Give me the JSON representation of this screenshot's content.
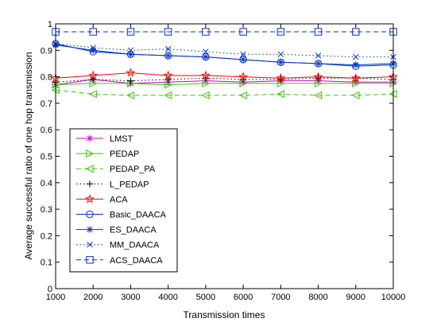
{
  "chart_data": {
    "type": "line",
    "title": "",
    "xlabel": "Transmission times",
    "ylabel": "Average successful ratio of one hop transmission",
    "x": [
      1000,
      2000,
      3000,
      4000,
      5000,
      6000,
      7000,
      8000,
      9000,
      10000
    ],
    "xlim": [
      1000,
      10000
    ],
    "ylim": [
      0,
      1
    ],
    "xticks": [
      "1000",
      "2000",
      "3000",
      "4000",
      "5000",
      "6000",
      "7000",
      "8000",
      "9000",
      "10000"
    ],
    "yticks": [
      "0",
      "0.1",
      "0.2",
      "0.3",
      "0.4",
      "0.5",
      "0.6",
      "0.7",
      "0.8",
      "0.9",
      "1"
    ],
    "grid": false,
    "legend_position": "bottom-left",
    "series": [
      {
        "name": "LMST",
        "color": "#cc00cc",
        "dash": "solid",
        "marker": "asterisk",
        "values": [
          0.77,
          0.79,
          0.775,
          0.78,
          0.785,
          0.78,
          0.785,
          0.785,
          0.78,
          0.78
        ]
      },
      {
        "name": "PEDAP",
        "color": "#33cc00",
        "dash": "solid",
        "marker": "triangle-right",
        "values": [
          0.77,
          0.775,
          0.775,
          0.77,
          0.775,
          0.775,
          0.775,
          0.775,
          0.775,
          0.775
        ]
      },
      {
        "name": "PEDAP_PA",
        "color": "#33cc00",
        "dash": "dashed",
        "marker": "triangle-left",
        "values": [
          0.75,
          0.735,
          0.73,
          0.73,
          0.73,
          0.73,
          0.735,
          0.73,
          0.73,
          0.735
        ]
      },
      {
        "name": "L_PEDAP",
        "color": "#000000",
        "dash": "dotted",
        "marker": "plus",
        "values": [
          0.78,
          0.79,
          0.785,
          0.79,
          0.795,
          0.79,
          0.79,
          0.795,
          0.795,
          0.79
        ]
      },
      {
        "name": "ACA",
        "color": "#ff0000",
        "dash": "solid",
        "marker": "star",
        "values": [
          0.795,
          0.805,
          0.815,
          0.805,
          0.805,
          0.8,
          0.795,
          0.8,
          0.795,
          0.8
        ]
      },
      {
        "name": "Basic_DAACA",
        "color": "#0033cc",
        "dash": "solid",
        "marker": "circle",
        "values": [
          0.925,
          0.895,
          0.885,
          0.88,
          0.875,
          0.865,
          0.855,
          0.85,
          0.84,
          0.845
        ]
      },
      {
        "name": "ES_DAACA",
        "color": "#0033cc",
        "dash": "solid",
        "marker": "asterisk",
        "values": [
          0.92,
          0.9,
          0.885,
          0.88,
          0.875,
          0.865,
          0.855,
          0.85,
          0.845,
          0.85
        ]
      },
      {
        "name": "MM_DAACA",
        "color": "#0033cc",
        "dash": "dotted",
        "marker": "x",
        "values": [
          0.925,
          0.91,
          0.9,
          0.905,
          0.895,
          0.885,
          0.885,
          0.88,
          0.875,
          0.875
        ]
      },
      {
        "name": "ACS_DAACA",
        "color": "#0033cc",
        "dash": "dashed",
        "marker": "square",
        "values": [
          0.97,
          0.97,
          0.97,
          0.97,
          0.97,
          0.97,
          0.97,
          0.97,
          0.97,
          0.97
        ]
      }
    ]
  }
}
